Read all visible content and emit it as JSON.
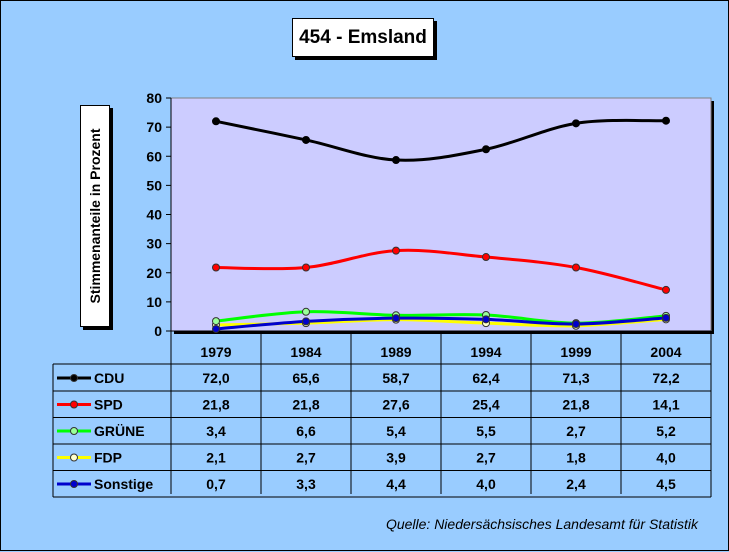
{
  "chart_data": {
    "type": "line",
    "title": "454 - Emsland",
    "ylabel": "Stimmenanteile in Prozent",
    "ylim": [
      0,
      80
    ],
    "yticks": [
      0,
      10,
      20,
      30,
      40,
      50,
      60,
      70,
      80
    ],
    "categories": [
      "1979",
      "1984",
      "1989",
      "1994",
      "1999",
      "2004"
    ],
    "series": [
      {
        "name": "CDU",
        "color": "#000000",
        "marker": "#000000",
        "values": [
          72.0,
          65.6,
          58.7,
          62.4,
          71.3,
          72.2
        ],
        "labels": [
          "72,0",
          "65,6",
          "58,7",
          "62,4",
          "71,3",
          "72,2"
        ]
      },
      {
        "name": "SPD",
        "color": "#ff0000",
        "marker": "#ff0000",
        "values": [
          21.8,
          21.8,
          27.6,
          25.4,
          21.8,
          14.1
        ],
        "labels": [
          "21,8",
          "21,8",
          "27,6",
          "25,4",
          "21,8",
          "14,1"
        ]
      },
      {
        "name": "GRÜNE",
        "color": "#00ff00",
        "marker": "#99ff99",
        "values": [
          3.4,
          6.6,
          5.4,
          5.5,
          2.7,
          5.2
        ],
        "labels": [
          "3,4",
          "6,6",
          "5,4",
          "5,5",
          "2,7",
          "5,2"
        ]
      },
      {
        "name": "FDP",
        "color": "#ffff00",
        "marker": "#ffffcc",
        "values": [
          2.1,
          2.7,
          3.9,
          2.7,
          1.8,
          4.0
        ],
        "labels": [
          "2,1",
          "2,7",
          "3,9",
          "2,7",
          "1,8",
          "4,0"
        ]
      },
      {
        "name": "Sonstige",
        "color": "#0000cc",
        "marker": "#0000cc",
        "values": [
          0.7,
          3.3,
          4.4,
          4.0,
          2.4,
          4.5
        ],
        "labels": [
          "0,7",
          "3,3",
          "4,4",
          "4,0",
          "2,4",
          "4,5"
        ]
      }
    ],
    "grid": false,
    "legend": "table-below",
    "plot_background": "#ccccff"
  },
  "source": "Quelle: Niedersächsisches Landesamt für Statistik"
}
